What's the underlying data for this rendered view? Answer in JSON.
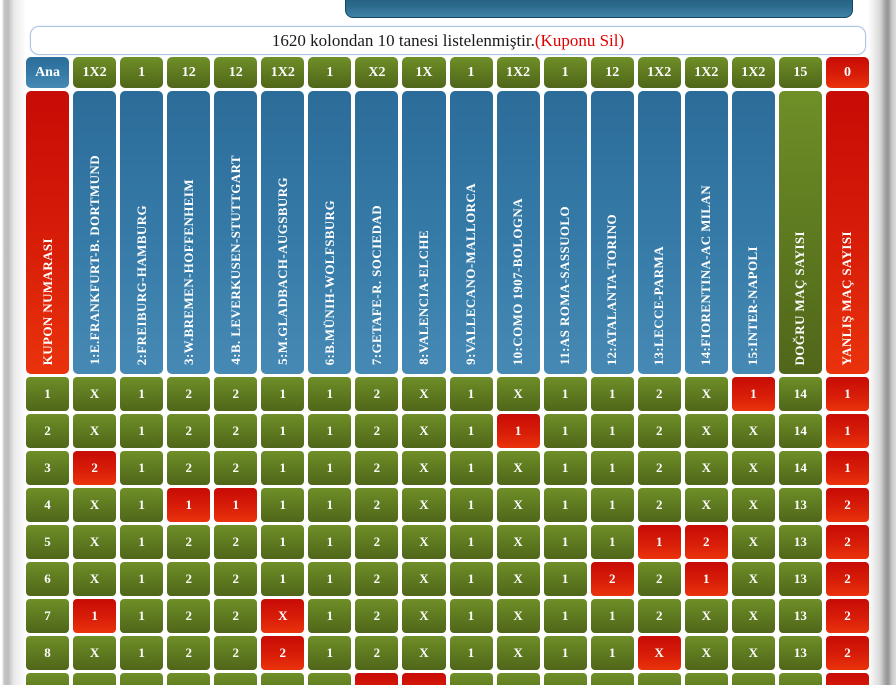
{
  "banner": {
    "text": "1620 kolondan 10 tanesi listelenmiştir.",
    "delete_link": "(Kuponu Sil)"
  },
  "colors": {
    "green": "#5d781f",
    "red": "#d81d08",
    "blue": "#357aa7",
    "banner_link_red": "#e00000",
    "toolbar_blue": "#2c6a8c"
  },
  "table": {
    "pick_headers": [
      {
        "label": "Ana",
        "color": "blue"
      },
      {
        "label": "1X2",
        "color": "green"
      },
      {
        "label": "1",
        "color": "green"
      },
      {
        "label": "12",
        "color": "green"
      },
      {
        "label": "12",
        "color": "green"
      },
      {
        "label": "1X2",
        "color": "green"
      },
      {
        "label": "1",
        "color": "green"
      },
      {
        "label": "X2",
        "color": "green"
      },
      {
        "label": "1X",
        "color": "green"
      },
      {
        "label": "1",
        "color": "green"
      },
      {
        "label": "1X2",
        "color": "green"
      },
      {
        "label": "1",
        "color": "green"
      },
      {
        "label": "12",
        "color": "green"
      },
      {
        "label": "1X2",
        "color": "green"
      },
      {
        "label": "1X2",
        "color": "green"
      },
      {
        "label": "1X2",
        "color": "green"
      },
      {
        "label": "15",
        "color": "green"
      },
      {
        "label": "0",
        "color": "red"
      }
    ],
    "match_headers": [
      {
        "label": "KUPON NUMARASI",
        "color": "red"
      },
      {
        "label": "1:E.FRANKFURT-B. DORTMUND",
        "color": "blue"
      },
      {
        "label": "2:FREIBURG-HAMBURG",
        "color": "blue"
      },
      {
        "label": "3:W.BREMEN-HOFFENHEIM",
        "color": "blue"
      },
      {
        "label": "4:B. LEVERKUSEN-STUTTGART",
        "color": "blue"
      },
      {
        "label": "5:M.GLADBACH-AUGSBURG",
        "color": "blue"
      },
      {
        "label": "6:B.MÜNIH-WOLFSBURG",
        "color": "blue"
      },
      {
        "label": "7:GETAFE-R. SOCIEDAD",
        "color": "blue"
      },
      {
        "label": "8:VALENCIA-ELCHE",
        "color": "blue"
      },
      {
        "label": "9:VALLECANO-MALLORCA",
        "color": "blue"
      },
      {
        "label": "10:COMO 1907-BOLOGNA",
        "color": "blue"
      },
      {
        "label": "11:AS ROMA-SASSUOLO",
        "color": "blue"
      },
      {
        "label": "12:ATALANTA-TORINO",
        "color": "blue"
      },
      {
        "label": "13:LECCE-PARMA",
        "color": "blue"
      },
      {
        "label": "14:FIORENTINA-AC MILAN",
        "color": "blue"
      },
      {
        "label": "15:INTER-NAPOLI",
        "color": "blue"
      },
      {
        "label": "DOĞRU MAÇ SAYISI",
        "color": "green"
      },
      {
        "label": "YANLIŞ MAÇ SAYISI",
        "color": "red"
      }
    ],
    "rows": [
      {
        "no": "1",
        "picks": [
          "X",
          "1",
          "2",
          "2",
          "1",
          "1",
          "2",
          "X",
          "1",
          "X",
          "1",
          "1",
          "2",
          "X",
          "1"
        ],
        "wrong_indices": [
          14
        ],
        "correct": "14",
        "wrong": "1"
      },
      {
        "no": "2",
        "picks": [
          "X",
          "1",
          "2",
          "2",
          "1",
          "1",
          "2",
          "X",
          "1",
          "1",
          "1",
          "1",
          "2",
          "X",
          "X"
        ],
        "wrong_indices": [
          9
        ],
        "correct": "14",
        "wrong": "1"
      },
      {
        "no": "3",
        "picks": [
          "2",
          "1",
          "2",
          "2",
          "1",
          "1",
          "2",
          "X",
          "1",
          "X",
          "1",
          "1",
          "2",
          "X",
          "X"
        ],
        "wrong_indices": [
          0
        ],
        "correct": "14",
        "wrong": "1"
      },
      {
        "no": "4",
        "picks": [
          "X",
          "1",
          "1",
          "1",
          "1",
          "1",
          "2",
          "X",
          "1",
          "X",
          "1",
          "1",
          "2",
          "X",
          "X"
        ],
        "wrong_indices": [
          2,
          3
        ],
        "correct": "13",
        "wrong": "2"
      },
      {
        "no": "5",
        "picks": [
          "X",
          "1",
          "2",
          "2",
          "1",
          "1",
          "2",
          "X",
          "1",
          "X",
          "1",
          "1",
          "1",
          "2",
          "X"
        ],
        "wrong_indices": [
          12,
          13
        ],
        "correct": "13",
        "wrong": "2"
      },
      {
        "no": "6",
        "picks": [
          "X",
          "1",
          "2",
          "2",
          "1",
          "1",
          "2",
          "X",
          "1",
          "X",
          "1",
          "2",
          "2",
          "1",
          "X"
        ],
        "wrong_indices": [
          11,
          13
        ],
        "correct": "13",
        "wrong": "2"
      },
      {
        "no": "7",
        "picks": [
          "1",
          "1",
          "2",
          "2",
          "X",
          "1",
          "2",
          "X",
          "1",
          "X",
          "1",
          "1",
          "2",
          "X",
          "X"
        ],
        "wrong_indices": [
          0,
          4
        ],
        "correct": "13",
        "wrong": "2"
      },
      {
        "no": "8",
        "picks": [
          "X",
          "1",
          "2",
          "2",
          "2",
          "1",
          "2",
          "X",
          "1",
          "X",
          "1",
          "1",
          "X",
          "X",
          "X"
        ],
        "wrong_indices": [
          4,
          12
        ],
        "correct": "13",
        "wrong": "2"
      },
      {
        "no": "",
        "picks": [
          "",
          "",
          "",
          "",
          "",
          "",
          "",
          "",
          "",
          "",
          "",
          "",
          "",
          "",
          ""
        ],
        "wrong_indices": [
          6,
          7
        ],
        "correct": "",
        "wrong": ""
      }
    ]
  }
}
